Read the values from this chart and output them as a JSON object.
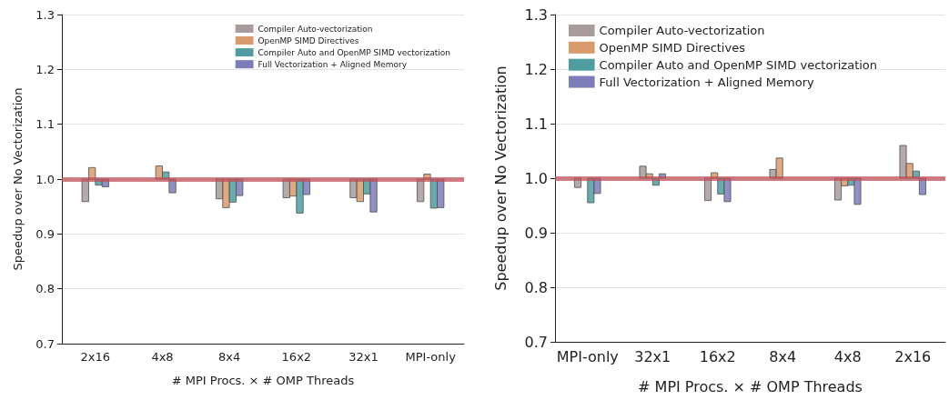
{
  "chart_data": [
    {
      "type": "bar",
      "xlabel": "# MPI Procs. × # OMP Threads",
      "ylabel": "Speedup over No Vectorization",
      "categories": [
        "2x16",
        "4x8",
        "8x4",
        "16x2",
        "32x1",
        "MPI-only"
      ],
      "series": [
        {
          "name": "Compiler Auto-vectorization",
          "color": "#a89b9b",
          "base": [
            1.0,
            null,
            1.0,
            1.0,
            1.0,
            1.0
          ],
          "values": [
            -0.041,
            null,
            -0.036,
            -0.034,
            -0.034,
            -0.041
          ]
        },
        {
          "name": "OpenMP SIMD Directives",
          "color": "#d99b6c",
          "base": [
            1.0,
            1.0,
            1.0,
            1.0,
            1.0,
            1.0
          ],
          "values": [
            0.021,
            0.024,
            -0.052,
            -0.031,
            -0.041,
            0.009
          ]
        },
        {
          "name": "Compiler Auto and OpenMP SIMD vectorization",
          "color": "#4f9da0",
          "base": [
            1.0,
            1.0,
            1.0,
            1.0,
            1.0,
            1.0
          ],
          "values": [
            -0.011,
            0.013,
            -0.042,
            -0.062,
            -0.027,
            -0.053
          ]
        },
        {
          "name": "Full Vectorization + Aligned Memory",
          "color": "#7b7cb8",
          "base": [
            1.0,
            1.0,
            1.0,
            1.0,
            1.0,
            1.0
          ],
          "values": [
            -0.014,
            -0.025,
            -0.03,
            -0.028,
            -0.06,
            -0.052
          ]
        }
      ],
      "ylim": [
        0.7,
        1.3
      ],
      "yticks": [
        0.7,
        0.8,
        0.9,
        {
          "value": 1.0,
          "label": "1.0"
        },
        1.1,
        1.2,
        1.3
      ],
      "ref_lines": [
        {
          "axis": "y",
          "value": 1.0,
          "color": "#c0505a"
        }
      ],
      "grid": "y",
      "legend": "top right"
    },
    {
      "type": "bar",
      "xlabel": "# MPI Procs. × # OMP Threads",
      "ylabel": "Speedup over No Vectorization",
      "categories": [
        "MPI-only",
        "32x1",
        "16x2",
        "8x4",
        "4x8",
        "2x16"
      ],
      "series": [
        {
          "name": "Compiler Auto-vectorization",
          "color": "#a89b9b",
          "base": [
            1.0,
            1.0,
            1.0,
            1.0,
            1.0,
            1.0
          ],
          "values": [
            -0.017,
            0.022,
            -0.041,
            0.016,
            -0.04,
            0.06
          ]
        },
        {
          "name": "OpenMP SIMD Directives",
          "color": "#d99b6c",
          "base": [
            null,
            1.0,
            1.0,
            1.0,
            1.0,
            1.0
          ],
          "values": [
            null,
            0.008,
            0.01,
            0.037,
            -0.014,
            0.027
          ]
        },
        {
          "name": "Compiler Auto and OpenMP SIMD vectorization",
          "color": "#4f9da0",
          "base": [
            1.0,
            1.0,
            1.0,
            null,
            1.0,
            1.0
          ],
          "values": [
            -0.045,
            -0.013,
            -0.029,
            null,
            -0.013,
            0.013
          ]
        },
        {
          "name": "Full Vectorization + Aligned Memory",
          "color": "#7b7cb8",
          "base": [
            1.0,
            1.0,
            1.0,
            null,
            1.0,
            1.0
          ],
          "values": [
            -0.028,
            0.008,
            -0.043,
            null,
            -0.048,
            -0.03
          ]
        }
      ],
      "ylim": [
        0.7,
        1.3
      ],
      "yticks": [
        0.7,
        0.8,
        0.9,
        {
          "value": 1.0,
          "label": "1.0"
        },
        1.1,
        1.2,
        1.3
      ],
      "ref_lines": [
        {
          "axis": "y",
          "value": 1.0,
          "color": "#c0505a"
        }
      ],
      "grid": "y",
      "legend": "top left"
    }
  ]
}
